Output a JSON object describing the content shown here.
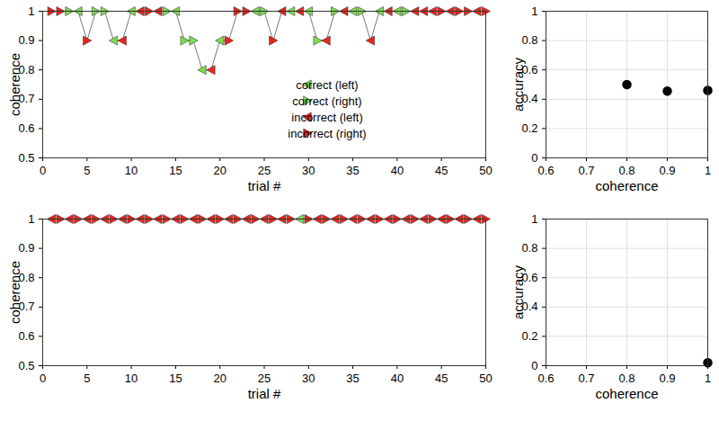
{
  "chart_data": [
    {
      "type": "line",
      "x_label": "trial #",
      "y_label": "coherence",
      "x": [
        1,
        2,
        3,
        4,
        5,
        6,
        7,
        8,
        9,
        10,
        11,
        12,
        13,
        14,
        15,
        16,
        17,
        18,
        19,
        20,
        21,
        22,
        23,
        24,
        25,
        26,
        27,
        28,
        29,
        30,
        31,
        32,
        33,
        34,
        35,
        36,
        37,
        38,
        39,
        40,
        41,
        42,
        43,
        44,
        45,
        46,
        47,
        48,
        49,
        50
      ],
      "xlim": [
        0,
        50
      ],
      "xticks": [
        0,
        5,
        10,
        15,
        20,
        25,
        30,
        35,
        40,
        45,
        50
      ],
      "ylim": [
        0.5,
        1
      ],
      "yticks": [
        0.5,
        0.6,
        0.7,
        0.8,
        0.9,
        1
      ],
      "grid": false,
      "legend": "lower right",
      "series": [
        {
          "name": "correct (left)",
          "color": "#7ddc4f",
          "marker": "triangle-left",
          "values": [
            null,
            null,
            null,
            1,
            null,
            null,
            null,
            0.9,
            null,
            1,
            null,
            null,
            null,
            null,
            1,
            null,
            null,
            0.8,
            null,
            0.9,
            null,
            null,
            null,
            1,
            null,
            null,
            null,
            1,
            null,
            1,
            null,
            null,
            null,
            null,
            1,
            null,
            null,
            1,
            null,
            1,
            null,
            null,
            null,
            null,
            null,
            null,
            null,
            null,
            null,
            null
          ]
        },
        {
          "name": "correct (right)",
          "color": "#7ddc4f",
          "marker": "triangle-right",
          "values": [
            null,
            null,
            1,
            null,
            null,
            1,
            1,
            null,
            null,
            null,
            null,
            null,
            null,
            1,
            null,
            0.9,
            0.9,
            null,
            null,
            null,
            null,
            null,
            null,
            null,
            1,
            null,
            null,
            null,
            null,
            null,
            0.9,
            null,
            1,
            null,
            null,
            1,
            null,
            null,
            null,
            null,
            1,
            null,
            null,
            null,
            null,
            null,
            null,
            null,
            null,
            null
          ]
        },
        {
          "name": "incorrect (left)",
          "color": "#e8261c",
          "marker": "triangle-left",
          "values": [
            null,
            null,
            null,
            null,
            null,
            null,
            null,
            null,
            0.9,
            null,
            1,
            null,
            1,
            null,
            null,
            null,
            null,
            null,
            0.8,
            null,
            null,
            null,
            null,
            null,
            null,
            null,
            1,
            null,
            1,
            null,
            null,
            0.9,
            null,
            1,
            null,
            null,
            0.9,
            null,
            1,
            null,
            null,
            1,
            1,
            1,
            null,
            1,
            null,
            null,
            1,
            null
          ]
        },
        {
          "name": "incorrect (right)",
          "color": "#e8261c",
          "marker": "triangle-right",
          "values": [
            1,
            1,
            null,
            null,
            0.9,
            null,
            null,
            null,
            null,
            null,
            null,
            1,
            null,
            null,
            null,
            null,
            null,
            null,
            null,
            null,
            0.9,
            1,
            1,
            null,
            null,
            0.9,
            null,
            null,
            null,
            null,
            null,
            null,
            null,
            null,
            null,
            null,
            null,
            null,
            null,
            null,
            null,
            null,
            null,
            null,
            1,
            null,
            1,
            1,
            null,
            1
          ]
        }
      ]
    },
    {
      "type": "scatter",
      "x_label": "coherence",
      "y_label": "accuracy",
      "x": [
        0.8,
        0.9,
        1
      ],
      "values": [
        0.5,
        0.455,
        0.46
      ],
      "xlim": [
        0.6,
        1
      ],
      "xticks": [
        0.6,
        0.7,
        0.8,
        0.9,
        1
      ],
      "ylim": [
        0,
        1
      ],
      "yticks": [
        0,
        0.2,
        0.4,
        0.6,
        0.8,
        1
      ],
      "grid": true,
      "color": "#000000",
      "marker": "circle"
    },
    {
      "type": "line",
      "x_label": "trial #",
      "y_label": "coherence",
      "x": [
        1,
        2,
        3,
        4,
        5,
        6,
        7,
        8,
        9,
        10,
        11,
        12,
        13,
        14,
        15,
        16,
        17,
        18,
        19,
        20,
        21,
        22,
        23,
        24,
        25,
        26,
        27,
        28,
        29,
        30,
        31,
        32,
        33,
        34,
        35,
        36,
        37,
        38,
        39,
        40,
        41,
        42,
        43,
        44,
        45,
        46,
        47,
        48,
        49,
        50
      ],
      "xlim": [
        0,
        50
      ],
      "xticks": [
        0,
        5,
        10,
        15,
        20,
        25,
        30,
        35,
        40,
        45,
        50
      ],
      "ylim": [
        0.5,
        1
      ],
      "yticks": [
        0.5,
        0.6,
        0.7,
        0.8,
        0.9,
        1
      ],
      "grid": false,
      "series": [
        {
          "name": "correct (left)",
          "color": "#7ddc4f",
          "marker": "triangle-left",
          "values": [
            null,
            null,
            null,
            null,
            null,
            null,
            null,
            null,
            null,
            null,
            null,
            null,
            null,
            null,
            null,
            null,
            null,
            null,
            null,
            null,
            null,
            null,
            null,
            null,
            null,
            null,
            null,
            null,
            1,
            null,
            null,
            null,
            null,
            null,
            null,
            null,
            null,
            null,
            null,
            null,
            null,
            null,
            null,
            null,
            null,
            null,
            null,
            null,
            null,
            null
          ]
        },
        {
          "name": "incorrect (left)",
          "color": "#e8261c",
          "marker": "triangle-left",
          "values": [
            1,
            null,
            1,
            null,
            1,
            null,
            1,
            null,
            1,
            null,
            1,
            null,
            1,
            null,
            1,
            null,
            1,
            null,
            1,
            null,
            1,
            null,
            1,
            null,
            1,
            null,
            1,
            null,
            null,
            null,
            1,
            null,
            1,
            null,
            1,
            null,
            1,
            null,
            1,
            null,
            1,
            null,
            1,
            null,
            1,
            null,
            1,
            null,
            1,
            null
          ]
        },
        {
          "name": "incorrect (right)",
          "color": "#e8261c",
          "marker": "triangle-right",
          "values": [
            null,
            1,
            null,
            1,
            null,
            1,
            null,
            1,
            null,
            1,
            null,
            1,
            null,
            1,
            null,
            1,
            null,
            1,
            null,
            1,
            null,
            1,
            null,
            1,
            null,
            1,
            null,
            1,
            null,
            1,
            null,
            1,
            null,
            1,
            null,
            1,
            null,
            1,
            null,
            1,
            null,
            1,
            null,
            1,
            null,
            1,
            null,
            1,
            null,
            1
          ]
        }
      ]
    },
    {
      "type": "scatter",
      "x_label": "coherence",
      "y_label": "accuracy",
      "x": [
        1
      ],
      "values": [
        0.02
      ],
      "xlim": [
        0.6,
        1
      ],
      "xticks": [
        0.6,
        0.7,
        0.8,
        0.9,
        1
      ],
      "ylim": [
        0,
        1
      ],
      "yticks": [
        0,
        0.2,
        0.4,
        0.6,
        0.8,
        1
      ],
      "grid": true,
      "color": "#000000",
      "marker": "circle"
    }
  ]
}
